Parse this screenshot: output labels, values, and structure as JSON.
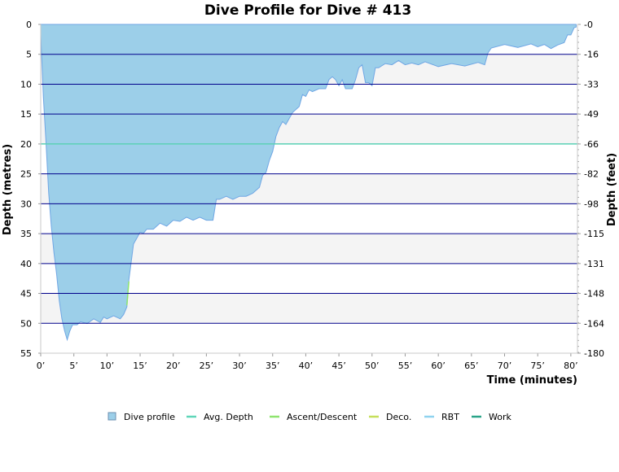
{
  "chart_data": {
    "type": "area",
    "title": "Dive Profile for Dive # 413",
    "xlabel": "Time (minutes)",
    "ylabel": "Depth (metres)",
    "y2label": "Depth (feet)",
    "xlim": [
      0,
      81
    ],
    "ylim": [
      0,
      55
    ],
    "y_inverted": true,
    "x_ticks": [
      0,
      5,
      10,
      15,
      20,
      25,
      30,
      35,
      40,
      45,
      50,
      55,
      60,
      65,
      70,
      75,
      80
    ],
    "x_tick_labels": [
      "0’",
      "5’",
      "10’",
      "15’",
      "20’",
      "25’",
      "30’",
      "35’",
      "40’",
      "45’",
      "50’",
      "55’",
      "60’",
      "65’",
      "70’",
      "75’",
      "80’"
    ],
    "y_ticks": [
      0,
      5,
      10,
      15,
      20,
      25,
      30,
      35,
      40,
      45,
      50,
      55
    ],
    "y_tick_labels": [
      "0",
      "5",
      "10",
      "15",
      "20",
      "25",
      "30",
      "35",
      "40",
      "45",
      "50",
      "55"
    ],
    "y2_tick_labels": [
      "0",
      "16",
      "33",
      "49",
      "66",
      "82",
      "98",
      "115",
      "131",
      "148",
      "164",
      "180"
    ],
    "grid": true,
    "banded_background": true,
    "avg_depth": 20,
    "colors": {
      "profile_fill": "#9ccfe9",
      "profile_edge": "#6fa6e4",
      "grid": "#00008b",
      "band": "#f4f4f4",
      "avg_depth": "#5fd6b8",
      "ascent": "#8ee46e",
      "deco": "#c6df5a",
      "rbt": "#8fd3ef",
      "work": "#2aa488"
    },
    "legend": {
      "placement": "bottom",
      "items": [
        {
          "label": "Dive profile",
          "kind": "box",
          "color": "#9ccfe9"
        },
        {
          "label": "Avg. Depth",
          "kind": "line",
          "color": "#5fd6b8"
        },
        {
          "label": "Ascent/Descent",
          "kind": "line",
          "color": "#8ee46e"
        },
        {
          "label": "Deco.",
          "kind": "line",
          "color": "#c6df5a"
        },
        {
          "label": "RBT",
          "kind": "line",
          "color": "#8fd3ef"
        },
        {
          "label": "Work",
          "kind": "line",
          "color": "#2aa488"
        }
      ]
    },
    "series": [
      {
        "name": "Dive profile",
        "x": [
          0,
          0.2,
          0.4,
          0.8,
          1.2,
          1.6,
          2.0,
          2.4,
          2.8,
          3.2,
          3.6,
          4.0,
          4.4,
          4.8,
          5.5,
          6.0,
          7.0,
          8.0,
          9.0,
          9.5,
          10.0,
          11.0,
          12.0,
          12.5,
          13.0,
          13.3,
          13.6,
          14.0,
          14.5,
          15.0,
          15.5,
          16.0,
          17.0,
          18.0,
          19.0,
          20.0,
          21.0,
          22.0,
          23.0,
          24.0,
          25.0,
          25.5,
          26.0,
          26.5,
          27.0,
          28.0,
          29.0,
          30.0,
          31.0,
          32.0,
          33.0,
          33.5,
          34.0,
          34.5,
          35.0,
          35.5,
          36.0,
          36.5,
          37.0,
          38.0,
          39.0,
          39.5,
          40.0,
          40.5,
          41.0,
          42.0,
          43.0,
          43.5,
          44.0,
          44.5,
          45.0,
          45.5,
          46.0,
          46.5,
          47.0,
          47.5,
          48.0,
          48.5,
          49.0,
          49.5,
          50.0,
          50.5,
          51.0,
          52.0,
          53.0,
          54.0,
          55.0,
          56.0,
          57.0,
          58.0,
          60.0,
          62.0,
          64.0,
          66.0,
          67.0,
          67.5,
          68.0,
          70.0,
          72.0,
          74.0,
          75.0,
          76.0,
          77.0,
          78.0,
          79.0,
          79.5,
          80.0,
          80.5,
          80.8
        ],
        "values": [
          1.5,
          7,
          12,
          20,
          28,
          34,
          38,
          42,
          46,
          49.5,
          51,
          53,
          51,
          50.5,
          50,
          50,
          49.8,
          49.5,
          49.6,
          49.2,
          49,
          49,
          49,
          48.8,
          47,
          43,
          40,
          37,
          35.5,
          35,
          34.7,
          34.5,
          34,
          33.5,
          33.5,
          33,
          32.7,
          32.5,
          32.5,
          32.5,
          32.5,
          33,
          32.5,
          29.5,
          29,
          29,
          29,
          29,
          28.5,
          28.5,
          27,
          25.5,
          24.5,
          23,
          21,
          19,
          17,
          16.5,
          16.5,
          15,
          13.5,
          12,
          11.8,
          11.2,
          11,
          11,
          10.5,
          9.5,
          8.5,
          9.5,
          10,
          9.5,
          10.5,
          11,
          10.5,
          9.5,
          7,
          7,
          9.5,
          10,
          10,
          7.5,
          7,
          6.8,
          6.5,
          6.3,
          6.5,
          6.7,
          6.5,
          6.5,
          6.8,
          6.8,
          6.7,
          6.6,
          6.5,
          5,
          3.7,
          3.6,
          3.6,
          3.5,
          3.5,
          3.6,
          3.8,
          3.7,
          2.8,
          2.0,
          1.5,
          0.8,
          0.2
        ]
      }
    ]
  }
}
